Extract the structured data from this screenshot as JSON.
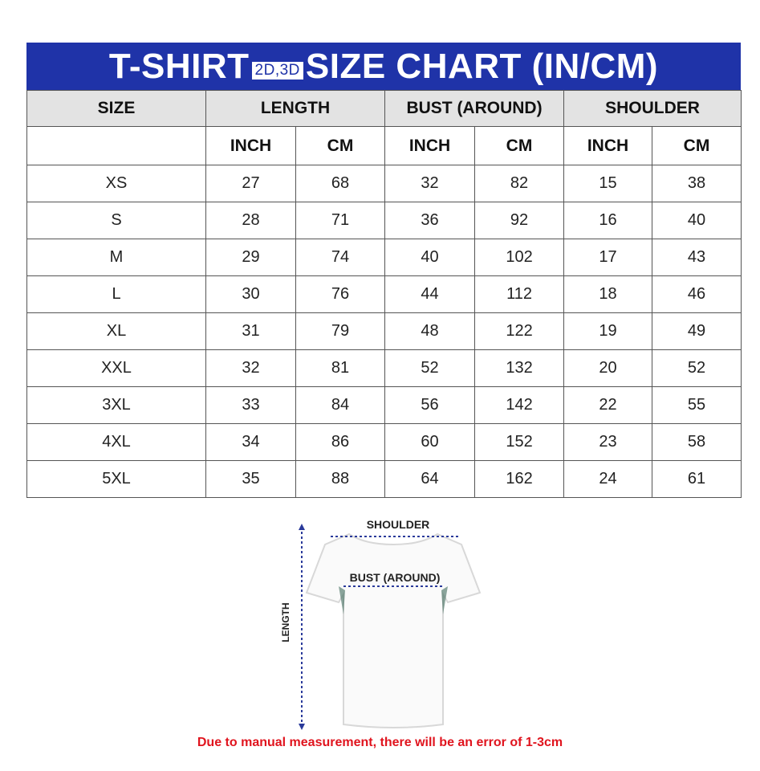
{
  "title": {
    "left": "T-SHIRT",
    "tag": "2D,3D",
    "right": "SIZE CHART (IN/CM)"
  },
  "colors": {
    "title_bg": "#1f33a8",
    "header_bg": "#e3e3e3",
    "note": "#e0141e"
  },
  "headers": {
    "size": "SIZE",
    "length": "LENGTH",
    "bust": "BUST (AROUND)",
    "shoulder": "SHOULDER",
    "inch": "INCH",
    "cm": "CM"
  },
  "rows": [
    [
      "XS",
      "27",
      "68",
      "32",
      "82",
      "15",
      "38"
    ],
    [
      "S",
      "28",
      "71",
      "36",
      "92",
      "16",
      "40"
    ],
    [
      "M",
      "29",
      "74",
      "40",
      "102",
      "17",
      "43"
    ],
    [
      "L",
      "30",
      "76",
      "44",
      "112",
      "18",
      "46"
    ],
    [
      "XL",
      "31",
      "79",
      "48",
      "122",
      "19",
      "49"
    ],
    [
      "XXL",
      "32",
      "81",
      "52",
      "132",
      "20",
      "52"
    ],
    [
      "3XL",
      "33",
      "84",
      "56",
      "142",
      "22",
      "55"
    ],
    [
      "4XL",
      "34",
      "86",
      "60",
      "152",
      "23",
      "58"
    ],
    [
      "5XL",
      "35",
      "88",
      "64",
      "162",
      "24",
      "61"
    ]
  ],
  "diagram": {
    "shoulder": "SHOULDER",
    "bust": "BUST (AROUND)",
    "length": "LENGTH"
  },
  "note": "Due to manual measurement, there will be an error of 1-3cm"
}
